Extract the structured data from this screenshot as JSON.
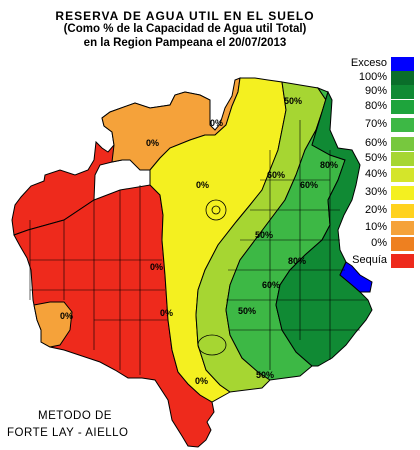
{
  "title": {
    "line1": "RESERVA DE AGUA UTIL EN EL SUELO",
    "line2": "(Como % de la Capacidad de Agua util Total)",
    "line3": "en la Region Pampeana el 20/07/2013"
  },
  "legend": [
    {
      "label": "Exceso",
      "color": "#0000ff"
    },
    {
      "label": "100%",
      "color": "#0a6e2a"
    },
    {
      "label": "90%",
      "color": "#108a34"
    },
    {
      "label": "80%",
      "color": "#1ea43c"
    },
    {
      "label": "70%",
      "color": "#3db845"
    },
    {
      "label": "60%",
      "color": "#77c83e"
    },
    {
      "label": "50%",
      "color": "#a6d632"
    },
    {
      "label": "40%",
      "color": "#d4e52a"
    },
    {
      "label": "30%",
      "color": "#f4f020"
    },
    {
      "label": "20%",
      "color": "#ffd21e"
    },
    {
      "label": "10%",
      "color": "#f5a23a"
    },
    {
      "label": "0%",
      "color": "#ee8020"
    },
    {
      "label": "Sequía",
      "color": "#ee2a1c"
    }
  ],
  "contour_labels": [
    "0%",
    "0%",
    "0%",
    "0%",
    "0%",
    "0%",
    "50%",
    "60%",
    "60%",
    "80%",
    "50%",
    "50%",
    "60%",
    "80%",
    "50%",
    "0%"
  ],
  "method": {
    "line1": "METODO DE",
    "line2": "FORTE LAY - AIELLO"
  }
}
